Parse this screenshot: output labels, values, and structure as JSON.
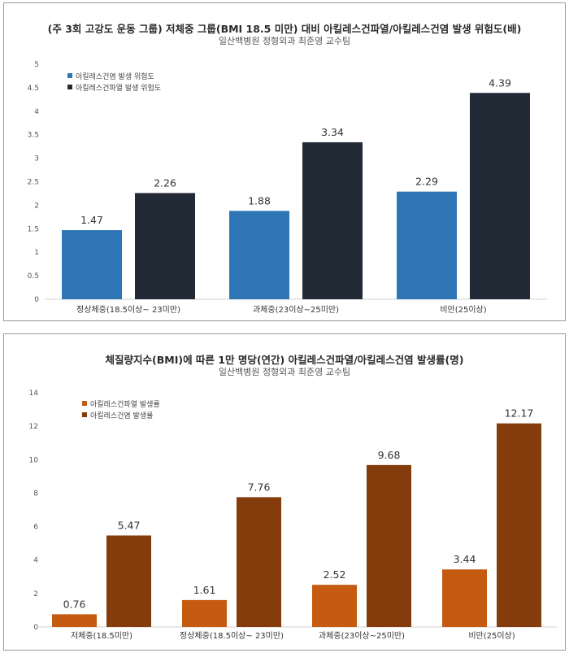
{
  "charts": {
    "c1": {
      "title": "(주 3회 고강도 운동 그룹) 저체중 그룹(BMI 18.5 미만) 대비 아킬레스건파열/아킬레스건염 발생 위험도(배)",
      "subtitle": "일산백병원 정형외과 최준영 교수팀"
    },
    "c2": {
      "title": "체질량지수(BMI)에 따른 1만 명당(연간) 아킬레스건파열/아킬레스건염 발생률(명)",
      "subtitle": "일산백병원 정형외과 최준영 교수팀"
    }
  },
  "chart_data": [
    {
      "type": "bar",
      "title": "(주 3회 고강도 운동 그룹) 저체중 그룹(BMI 18.5 미만) 대비 아킬레스건파열/아킬레스건염 발생 위험도(배)",
      "subtitle": "일산백병원 정형외과 최준영 교수팀",
      "categories": [
        "정상체중(18.5이상~ 23미만)",
        "과체중(23이상~25미만)",
        "비만(25이상)"
      ],
      "series": [
        {
          "name": "아킬레스건염 발생 위험도",
          "values": [
            1.47,
            1.88,
            2.29
          ],
          "color": "#2e75b6"
        },
        {
          "name": "아킬레스건파열 발생 위험도",
          "values": [
            2.26,
            3.34,
            4.39
          ],
          "color": "#222a35"
        }
      ],
      "ylim": [
        0,
        5
      ],
      "yticks": [
        "0",
        "0.5",
        "1",
        "1.5",
        "2",
        "2.5",
        "3",
        "3.5",
        "4",
        "4.5",
        "5"
      ],
      "data_labels": [
        [
          "1.47",
          "1.88",
          "2.29"
        ],
        [
          "2.26",
          "3.34",
          "4.39"
        ]
      ],
      "legend": "top-left",
      "grid": false
    },
    {
      "type": "bar",
      "title": "체질량지수(BMI)에 따른 1만 명당(연간) 아킬레스건파열/아킬레스건염 발생률(명)",
      "subtitle": "일산백병원 정형외과 최준영 교수팀",
      "categories": [
        "저체중(18.5미만)",
        "정상체중(18.5이상~ 23미만)",
        "과체중(23이상~25미만)",
        "비만(25이상)"
      ],
      "series": [
        {
          "name": "아킬레스건파열 발생률",
          "values": [
            0.76,
            1.61,
            2.52,
            3.44
          ],
          "color": "#c55a11"
        },
        {
          "name": "아킬레스건염 발생률",
          "values": [
            5.47,
            7.76,
            9.68,
            12.17
          ],
          "color": "#843c0c"
        }
      ],
      "ylim": [
        0,
        14
      ],
      "yticks": [
        "0",
        "2",
        "4",
        "6",
        "8",
        "10",
        "12",
        "14"
      ],
      "data_labels": [
        [
          "0.76",
          "1.61",
          "2.52",
          "3.44"
        ],
        [
          "5.47",
          "7.76",
          "9.68",
          "12.17"
        ]
      ],
      "legend": "top-left",
      "grid": false
    }
  ]
}
